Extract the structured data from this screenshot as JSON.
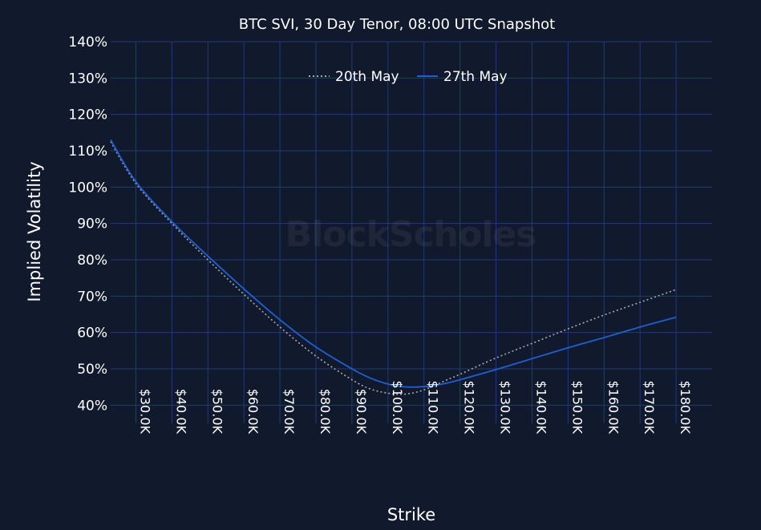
{
  "chart_data": {
    "type": "line",
    "title": "BTC SVI, 30 Day Tenor, 08:00 UTC Snapshot",
    "xlabel": "Strike",
    "ylabel": "Implied Volatility",
    "watermark": "BlockScholes",
    "xlim": [
      23000,
      190000
    ],
    "ylim": [
      35,
      140
    ],
    "x_ticks": [
      30000,
      40000,
      50000,
      60000,
      70000,
      80000,
      90000,
      100000,
      110000,
      120000,
      130000,
      140000,
      150000,
      160000,
      170000,
      180000
    ],
    "x_tick_labels": [
      "$30.0K",
      "$40.0K",
      "$50.0K",
      "$60.0K",
      "$70.0K",
      "$80.0K",
      "$90.0K",
      "$100.0K",
      "$110.0K",
      "$120.0K",
      "$130.0K",
      "$140.0K",
      "$150.0K",
      "$160.0K",
      "$170.0K",
      "$180.0K"
    ],
    "y_ticks": [
      40,
      50,
      60,
      70,
      80,
      90,
      100,
      110,
      120,
      130,
      140
    ],
    "y_tick_labels": [
      "40%",
      "50%",
      "60%",
      "70%",
      "80%",
      "90%",
      "100%",
      "110%",
      "120%",
      "130%",
      "140%"
    ],
    "grid": true,
    "legend_position": "top-center",
    "background_color": "#111a2c",
    "grid_color": "#1f3a78",
    "series": [
      {
        "name": "20th May",
        "style": "dotted",
        "color": "#a9a9a9",
        "x": [
          23000,
          30000,
          40000,
          50000,
          60000,
          70000,
          80000,
          90000,
          95000,
          100000,
          104000,
          108000,
          112000,
          116000,
          120000,
          130000,
          140000,
          150000,
          160000,
          170000,
          180000
        ],
        "y": [
          112.5,
          101,
          90,
          80,
          70.5,
          61.5,
          53.5,
          47,
          44.5,
          43.3,
          43,
          43.6,
          45,
          46.8,
          48.5,
          53,
          57,
          61,
          64.8,
          68.3,
          71.8
        ]
      },
      {
        "name": "27th May",
        "style": "solid",
        "color": "#1f5fd6",
        "x": [
          23000,
          30000,
          40000,
          50000,
          60000,
          70000,
          80000,
          90000,
          95000,
          100000,
          104000,
          108000,
          112000,
          116000,
          120000,
          130000,
          140000,
          150000,
          160000,
          170000,
          180000
        ],
        "y": [
          113,
          101.5,
          90.5,
          81,
          72,
          63.5,
          56,
          50,
          47.5,
          45.8,
          45.1,
          45,
          45.3,
          46,
          47,
          49.8,
          52.8,
          55.8,
          58.6,
          61.5,
          64.2
        ]
      }
    ]
  }
}
